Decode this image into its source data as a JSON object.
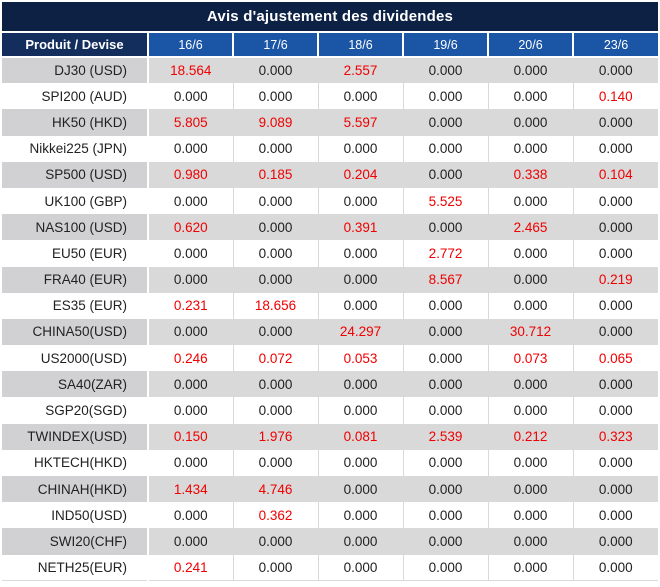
{
  "theme": {
    "navy": "#0d2145",
    "produit_header_navy": "#132e5c",
    "header_blue": "#1a55a6",
    "gray_row": "#d9d9d9",
    "gray_product_cell": "#d1d1d3",
    "red_value": "#f00000",
    "dark_text": "#212121"
  },
  "table": {
    "title": "Avis d'ajustement des dividendes",
    "product_header": "Produit / Devise",
    "columns": [
      "16/6",
      "17/6",
      "18/6",
      "19/6",
      "20/6",
      "23/6"
    ],
    "rows": [
      {
        "product": "DJ30 (USD)",
        "values": [
          "18.564",
          "0.000",
          "2.557",
          "0.000",
          "0.000",
          "0.000"
        ]
      },
      {
        "product": "SPI200 (AUD)",
        "values": [
          "0.000",
          "0.000",
          "0.000",
          "0.000",
          "0.000",
          "0.140"
        ]
      },
      {
        "product": "HK50 (HKD)",
        "values": [
          "5.805",
          "9.089",
          "5.597",
          "0.000",
          "0.000",
          "0.000"
        ]
      },
      {
        "product": "Nikkei225 (JPN)",
        "values": [
          "0.000",
          "0.000",
          "0.000",
          "0.000",
          "0.000",
          "0.000"
        ]
      },
      {
        "product": "SP500 (USD)",
        "values": [
          "0.980",
          "0.185",
          "0.204",
          "0.000",
          "0.338",
          "0.104"
        ]
      },
      {
        "product": "UK100 (GBP)",
        "values": [
          "0.000",
          "0.000",
          "0.000",
          "5.525",
          "0.000",
          "0.000"
        ]
      },
      {
        "product": "NAS100 (USD)",
        "values": [
          "0.620",
          "0.000",
          "0.391",
          "0.000",
          "2.465",
          "0.000"
        ]
      },
      {
        "product": "EU50 (EUR)",
        "values": [
          "0.000",
          "0.000",
          "0.000",
          "2.772",
          "0.000",
          "0.000"
        ]
      },
      {
        "product": "FRA40 (EUR)",
        "values": [
          "0.000",
          "0.000",
          "0.000",
          "8.567",
          "0.000",
          "0.219"
        ]
      },
      {
        "product": "ES35 (EUR)",
        "values": [
          "0.231",
          "18.656",
          "0.000",
          "0.000",
          "0.000",
          "0.000"
        ]
      },
      {
        "product": "CHINA50(USD)",
        "values": [
          "0.000",
          "0.000",
          "24.297",
          "0.000",
          "30.712",
          "0.000"
        ]
      },
      {
        "product": "US2000(USD)",
        "values": [
          "0.246",
          "0.072",
          "0.053",
          "0.000",
          "0.073",
          "0.065"
        ]
      },
      {
        "product": "SA40(ZAR)",
        "values": [
          "0.000",
          "0.000",
          "0.000",
          "0.000",
          "0.000",
          "0.000"
        ]
      },
      {
        "product": "SGP20(SGD)",
        "values": [
          "0.000",
          "0.000",
          "0.000",
          "0.000",
          "0.000",
          "0.000"
        ]
      },
      {
        "product": "TWINDEX(USD)",
        "values": [
          "0.150",
          "1.976",
          "0.081",
          "2.539",
          "0.212",
          "0.323"
        ]
      },
      {
        "product": "HKTECH(HKD)",
        "values": [
          "0.000",
          "0.000",
          "0.000",
          "0.000",
          "0.000",
          "0.000"
        ]
      },
      {
        "product": "CHINAH(HKD)",
        "values": [
          "1.434",
          "4.746",
          "0.000",
          "0.000",
          "0.000",
          "0.000"
        ]
      },
      {
        "product": "IND50(USD)",
        "values": [
          "0.000",
          "0.362",
          "0.000",
          "0.000",
          "0.000",
          "0.000"
        ]
      },
      {
        "product": "SWI20(CHF)",
        "values": [
          "0.000",
          "0.000",
          "0.000",
          "0.000",
          "0.000",
          "0.000"
        ]
      },
      {
        "product": "NETH25(EUR)",
        "values": [
          "0.241",
          "0.000",
          "0.000",
          "0.000",
          "0.000",
          "0.000"
        ]
      }
    ]
  }
}
